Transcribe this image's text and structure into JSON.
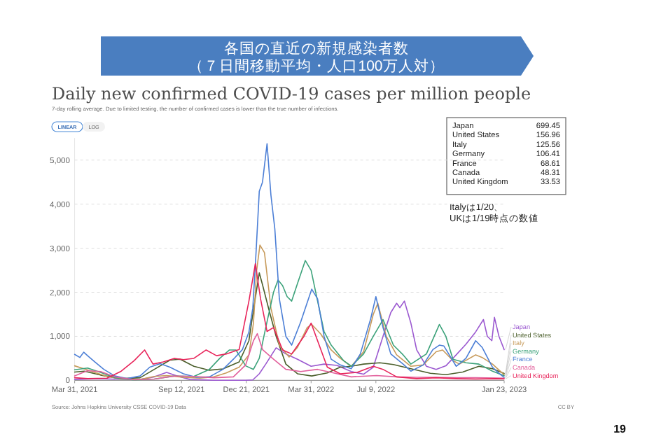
{
  "chart_data": {
    "type": "line",
    "title": "各国の直近の新規感染者数",
    "subtitle": "（７日間移動平均・人口100万人対）",
    "annotations": [
      "Daily new confirmed COVID-19 cases per million people",
      "7-day rolling average. Due to limited testing, the number of confirmed cases is lower than the true number of infections.",
      "LINEAR",
      "LOG",
      "Japan 699.45",
      "United States 156.96",
      "Italy 125.56",
      "Germany 106.41",
      "France 68.61",
      "Canada 48.31",
      "United Kingdom 33.53",
      "Italyは1/20、",
      "UKは1/19時点の数値",
      "Source: Johns Hopkins University CSSE COVID-19 Data",
      "CC BY",
      "19"
    ],
    "xlim": [
      "2021-03-31",
      "2023-01-23"
    ],
    "xticks": [
      {
        "value": "2021-03-31",
        "label": "Mar 31, 2021"
      },
      {
        "value": "2021-09-12",
        "label": "Sep 12, 2021"
      },
      {
        "value": "2021-12-21",
        "label": "Dec 21, 2021"
      },
      {
        "value": "2022-03-31",
        "label": "Mar 31, 2022"
      },
      {
        "value": "2022-07-09",
        "label": "Jul 9, 2022"
      },
      {
        "value": "2023-01-23",
        "label": "Jan 23, 2023"
      }
    ],
    "ylim": [
      0,
      5500
    ],
    "yticks": [
      0,
      {
        "value": 1000,
        "label": "1,000"
      },
      {
        "value": 2000,
        "label": "2,000"
      },
      {
        "value": 3000,
        "label": "3,000"
      },
      {
        "value": 4000,
        "label": "4,000"
      },
      {
        "value": 5000,
        "label": "5,000"
      }
    ],
    "grid": "y",
    "legend": "right",
    "series": [
      {
        "name": "Japan",
        "color": "#9b59d0",
        "x": [
          "2021-03-31",
          "2021-04-20",
          "2021-05-10",
          "2021-06-01",
          "2021-07-10",
          "2021-08-01",
          "2021-08-20",
          "2021-09-05",
          "2021-09-25",
          "2021-11-01",
          "2021-12-20",
          "2021-12-31",
          "2022-01-10",
          "2022-01-20",
          "2022-02-05",
          "2022-02-20",
          "2022-03-10",
          "2022-03-31",
          "2022-04-20",
          "2022-05-10",
          "2022-06-01",
          "2022-06-20",
          "2022-07-05",
          "2022-07-20",
          "2022-08-01",
          "2022-08-10",
          "2022-08-15",
          "2022-08-22",
          "2022-09-01",
          "2022-09-10",
          "2022-09-25",
          "2022-10-10",
          "2022-10-25",
          "2022-11-10",
          "2022-11-25",
          "2022-12-10",
          "2022-12-22",
          "2022-12-28",
          "2023-01-04",
          "2023-01-08",
          "2023-01-15",
          "2023-01-23"
        ],
        "values": [
          20,
          30,
          40,
          25,
          20,
          80,
          180,
          100,
          20,
          2,
          2,
          10,
          150,
          370,
          740,
          600,
          480,
          320,
          370,
          340,
          200,
          140,
          300,
          1000,
          1540,
          1750,
          1650,
          1800,
          1300,
          690,
          320,
          250,
          330,
          580,
          820,
          1100,
          1380,
          1000,
          900,
          1430,
          1000,
          699
        ]
      },
      {
        "name": "United States",
        "color": "#4a5e2a",
        "x": [
          "2021-03-31",
          "2021-04-15",
          "2021-05-10",
          "2021-06-10",
          "2021-07-10",
          "2021-08-01",
          "2021-08-25",
          "2021-09-10",
          "2021-10-01",
          "2021-10-25",
          "2021-11-15",
          "2021-12-10",
          "2021-12-25",
          "2022-01-01",
          "2022-01-10",
          "2022-01-15",
          "2022-01-25",
          "2022-02-05",
          "2022-02-20",
          "2022-03-10",
          "2022-04-01",
          "2022-04-25",
          "2022-05-15",
          "2022-06-01",
          "2022-06-20",
          "2022-07-15",
          "2022-08-05",
          "2022-09-01",
          "2022-10-01",
          "2022-10-25",
          "2022-11-20",
          "2022-12-15",
          "2023-01-05",
          "2023-01-23"
        ],
        "values": [
          190,
          210,
          120,
          40,
          60,
          250,
          460,
          480,
          320,
          230,
          260,
          420,
          900,
          1600,
          2440,
          2170,
          1600,
          1000,
          370,
          150,
          100,
          170,
          300,
          320,
          370,
          400,
          360,
          265,
          160,
          130,
          190,
          320,
          265,
          157
        ]
      },
      {
        "name": "Italy",
        "color": "#c79a5a",
        "x": [
          "2021-03-31",
          "2021-04-15",
          "2021-05-01",
          "2021-05-20",
          "2021-06-10",
          "2021-07-10",
          "2021-08-01",
          "2021-08-20",
          "2021-09-15",
          "2021-10-10",
          "2021-11-01",
          "2021-11-20",
          "2021-12-10",
          "2021-12-25",
          "2022-01-01",
          "2022-01-06",
          "2022-01-11",
          "2022-01-18",
          "2022-01-28",
          "2022-02-10",
          "2022-02-25",
          "2022-03-10",
          "2022-03-25",
          "2022-04-01",
          "2022-04-15",
          "2022-05-01",
          "2022-05-15",
          "2022-06-01",
          "2022-06-20",
          "2022-07-05",
          "2022-07-12",
          "2022-07-25",
          "2022-08-10",
          "2022-09-01",
          "2022-09-20",
          "2022-10-10",
          "2022-10-20",
          "2022-11-05",
          "2022-11-15",
          "2022-12-10",
          "2022-12-20",
          "2023-01-05",
          "2023-01-23"
        ],
        "values": [
          330,
          260,
          180,
          90,
          30,
          20,
          90,
          110,
          70,
          50,
          80,
          170,
          300,
          580,
          1300,
          2500,
          3070,
          2900,
          1640,
          800,
          530,
          750,
          1200,
          1270,
          1050,
          690,
          500,
          320,
          650,
          1500,
          1750,
          1000,
          580,
          320,
          350,
          650,
          690,
          450,
          370,
          580,
          520,
          370,
          126
        ]
      },
      {
        "name": "Germany",
        "color": "#3ca27a",
        "x": [
          "2021-03-31",
          "2021-04-20",
          "2021-05-10",
          "2021-06-01",
          "2021-07-01",
          "2021-08-01",
          "2021-09-01",
          "2021-10-01",
          "2021-10-25",
          "2021-11-10",
          "2021-11-25",
          "2021-12-05",
          "2021-12-20",
          "2022-01-01",
          "2022-01-10",
          "2022-01-20",
          "2022-02-01",
          "2022-02-08",
          "2022-02-15",
          "2022-02-22",
          "2022-03-01",
          "2022-03-10",
          "2022-03-22",
          "2022-03-31",
          "2022-04-10",
          "2022-04-20",
          "2022-05-01",
          "2022-05-20",
          "2022-06-01",
          "2022-06-20",
          "2022-07-05",
          "2022-07-20",
          "2022-08-05",
          "2022-08-20",
          "2022-09-01",
          "2022-09-25",
          "2022-10-10",
          "2022-10-15",
          "2022-10-25",
          "2022-11-05",
          "2022-11-25",
          "2022-12-15",
          "2023-01-05",
          "2023-01-23"
        ],
        "values": [
          240,
          280,
          180,
          60,
          10,
          30,
          100,
          90,
          250,
          500,
          690,
          690,
          330,
          250,
          500,
          1200,
          2000,
          2280,
          2150,
          1900,
          1800,
          2200,
          2720,
          2500,
          1800,
          1110,
          800,
          450,
          320,
          600,
          1000,
          1380,
          800,
          580,
          370,
          600,
          1100,
          1270,
          1000,
          480,
          400,
          370,
          210,
          106
        ]
      },
      {
        "name": "France",
        "color": "#4c7fd6",
        "x": [
          "2021-03-31",
          "2021-04-08",
          "2021-04-14",
          "2021-04-20",
          "2021-05-01",
          "2021-05-15",
          "2021-06-01",
          "2021-06-20",
          "2021-07-10",
          "2021-07-25",
          "2021-08-10",
          "2021-08-25",
          "2021-09-15",
          "2021-10-05",
          "2021-10-25",
          "2021-11-15",
          "2021-12-01",
          "2021-12-15",
          "2021-12-25",
          "2021-12-31",
          "2022-01-05",
          "2022-01-10",
          "2022-01-15",
          "2022-01-22",
          "2022-01-28",
          "2022-02-03",
          "2022-02-10",
          "2022-02-20",
          "2022-03-01",
          "2022-03-15",
          "2022-04-01",
          "2022-04-10",
          "2022-04-20",
          "2022-05-01",
          "2022-05-15",
          "2022-06-01",
          "2022-06-15",
          "2022-07-01",
          "2022-07-09",
          "2022-07-20",
          "2022-08-01",
          "2022-08-20",
          "2022-09-01",
          "2022-09-20",
          "2022-10-05",
          "2022-10-15",
          "2022-10-22",
          "2022-11-10",
          "2022-11-25",
          "2022-12-10",
          "2022-12-20",
          "2023-01-05",
          "2023-01-15",
          "2023-01-23"
        ],
        "values": [
          590,
          520,
          640,
          560,
          420,
          250,
          100,
          40,
          100,
          300,
          380,
          300,
          150,
          70,
          80,
          250,
          480,
          700,
          1100,
          1640,
          2900,
          4290,
          4500,
          5370,
          4200,
          3440,
          1850,
          1000,
          800,
          1330,
          2070,
          1850,
          1000,
          480,
          350,
          265,
          600,
          1400,
          1900,
          1200,
          600,
          370,
          210,
          350,
          700,
          800,
          780,
          320,
          500,
          900,
          750,
          300,
          160,
          69
        ]
      },
      {
        "name": "Canada",
        "color": "#e2609c",
        "x": [
          "2021-03-31",
          "2021-04-20",
          "2021-05-10",
          "2021-06-01",
          "2021-07-01",
          "2021-08-01",
          "2021-09-01",
          "2021-10-01",
          "2021-11-01",
          "2021-12-01",
          "2021-12-20",
          "2022-01-01",
          "2022-01-07",
          "2022-01-15",
          "2022-02-01",
          "2022-02-20",
          "2022-03-15",
          "2022-04-10",
          "2022-05-01",
          "2022-06-01",
          "2022-07-10",
          "2022-08-10",
          "2022-09-10",
          "2022-10-10",
          "2022-11-10",
          "2022-12-10",
          "2023-01-10",
          "2023-01-23"
        ],
        "values": [
          100,
          220,
          200,
          80,
          15,
          30,
          100,
          90,
          60,
          80,
          350,
          900,
          1060,
          700,
          480,
          250,
          200,
          250,
          180,
          80,
          110,
          80,
          70,
          70,
          60,
          60,
          55,
          48
        ]
      },
      {
        "name": "United Kingdom",
        "color": "#e8245a",
        "x": [
          "2021-03-31",
          "2021-04-20",
          "2021-05-20",
          "2021-06-10",
          "2021-07-01",
          "2021-07-17",
          "2021-07-30",
          "2021-08-15",
          "2021-09-01",
          "2021-09-15",
          "2021-10-01",
          "2021-10-20",
          "2021-11-05",
          "2021-11-20",
          "2021-12-10",
          "2021-12-25",
          "2022-01-04",
          "2022-01-12",
          "2022-01-22",
          "2022-02-01",
          "2022-02-15",
          "2022-03-01",
          "2022-03-20",
          "2022-03-31",
          "2022-04-10",
          "2022-04-25",
          "2022-05-15",
          "2022-06-10",
          "2022-07-05",
          "2022-07-20",
          "2022-08-10",
          "2022-09-10",
          "2022-10-10",
          "2022-11-10",
          "2022-12-10",
          "2023-01-10",
          "2023-01-23"
        ],
        "values": [
          60,
          40,
          50,
          200,
          450,
          690,
          370,
          420,
          500,
          470,
          500,
          690,
          560,
          600,
          700,
          1800,
          2650,
          1850,
          1110,
          1200,
          690,
          600,
          1000,
          1300,
          900,
          300,
          150,
          180,
          320,
          250,
          80,
          40,
          60,
          40,
          30,
          40,
          34
        ]
      }
    ]
  }
}
